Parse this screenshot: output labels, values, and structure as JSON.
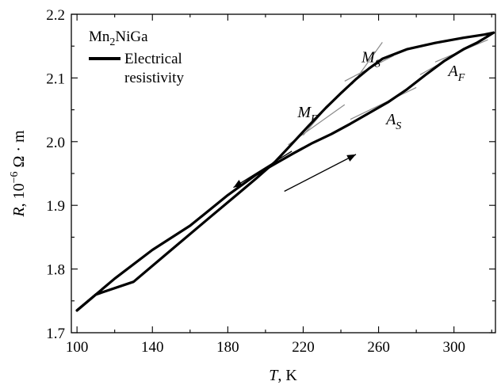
{
  "chart_data": {
    "type": "line",
    "xlabel": {
      "var": "T",
      "unit": ", K"
    },
    "ylabel": {
      "var": "R",
      "rest": ", 10",
      "exp": "−6",
      "unit": " Ω · m"
    },
    "xlim": [
      97,
      322
    ],
    "ylim": [
      1.7,
      2.2
    ],
    "x_ticks": [
      100,
      140,
      180,
      220,
      260,
      300
    ],
    "y_ticks": [
      1.7,
      1.8,
      1.9,
      2.0,
      2.1,
      2.2
    ],
    "x_tick_labels": [
      "100",
      "140",
      "180",
      "220",
      "260",
      "300"
    ],
    "y_tick_labels": [
      "1.7",
      "1.8",
      "1.9",
      "2.0",
      "2.1",
      "2.2"
    ],
    "legend": {
      "sample": "Mn2NiGa",
      "sample_base": "Mn",
      "sample_sub": "2",
      "sample_rest": "NiGa",
      "series_line1": "Electrical",
      "series_line2": "resistivity"
    },
    "series": [
      {
        "name": "Electrical resistivity",
        "direction": "cooling",
        "x": [
          321,
          316,
          305,
          290,
          275,
          262,
          255,
          248,
          240,
          232,
          222,
          212,
          205,
          195,
          185,
          170,
          150,
          130,
          110,
          100
        ],
        "y": [
          2.171,
          2.168,
          2.163,
          2.155,
          2.145,
          2.13,
          2.115,
          2.098,
          2.076,
          2.053,
          2.022,
          1.99,
          1.968,
          1.942,
          1.917,
          1.88,
          1.83,
          1.78,
          1.76,
          1.735
        ]
      },
      {
        "name": "Electrical resistivity",
        "direction": "heating",
        "x": [
          100,
          120,
          140,
          160,
          180,
          195,
          205,
          215,
          225,
          235,
          245,
          255,
          265,
          275,
          285,
          295,
          305,
          312,
          316,
          321
        ],
        "y": [
          1.735,
          1.785,
          1.83,
          1.868,
          1.916,
          1.948,
          1.965,
          1.982,
          1.998,
          2.012,
          2.028,
          2.045,
          2.062,
          2.082,
          2.105,
          2.127,
          2.145,
          2.155,
          2.162,
          2.171
        ]
      }
    ],
    "annotations": [
      {
        "label": "M",
        "sub": "S",
        "x": 251,
        "y": 2.125
      },
      {
        "label": "M",
        "sub": "F",
        "x": 217,
        "y": 2.038
      },
      {
        "label": "A",
        "sub": "S",
        "x": 264,
        "y": 2.027
      },
      {
        "label": "A",
        "sub": "F",
        "x": 297,
        "y": 2.103
      }
    ],
    "tangent_lines": [
      {
        "x": [
          242,
          268
        ],
        "y": [
          2.095,
          2.135
        ]
      },
      {
        "x": [
          246,
          262
        ],
        "y": [
          2.09,
          2.156
        ]
      },
      {
        "x": [
          212,
          242
        ],
        "y": [
          1.995,
          2.058
        ]
      },
      {
        "x": [
          220,
          230
        ],
        "y": [
          2.01,
          2.045
        ]
      },
      {
        "x": [
          245,
          280
        ],
        "y": [
          2.035,
          2.085
        ]
      },
      {
        "x": [
          282,
          312
        ],
        "y": [
          2.105,
          2.155
        ]
      },
      {
        "x": [
          290,
          318
        ],
        "y": [
          2.125,
          2.16
        ]
      }
    ],
    "arrows": [
      {
        "direction": "cooling",
        "x": [
          214,
          183
        ],
        "y": [
          1.985,
          1.928
        ]
      },
      {
        "direction": "heating",
        "x": [
          210,
          248
        ],
        "y": [
          1.922,
          1.98
        ]
      }
    ],
    "grid": false,
    "legend_position": "top-left"
  }
}
